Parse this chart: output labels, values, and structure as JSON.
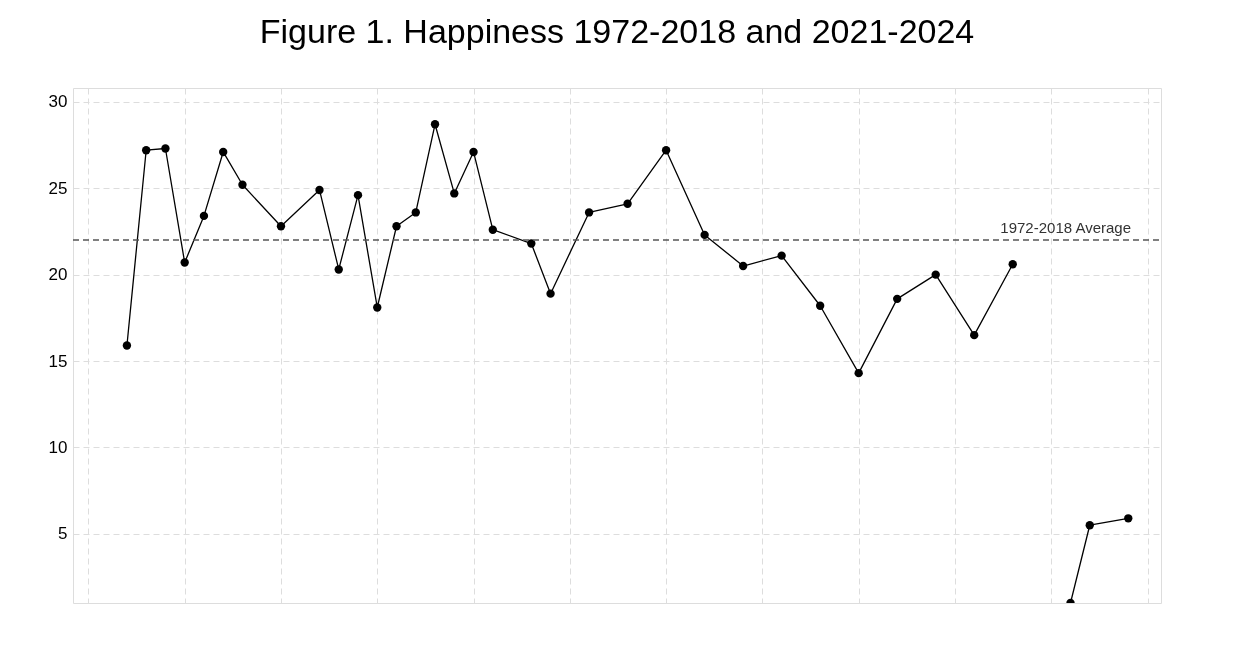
{
  "chart_data": {
    "type": "line",
    "title": "Figure 1.  Happiness 1972-2018 and 2021-2024",
    "categories": [
      null,
      null,
      null,
      null,
      null,
      null,
      null,
      null,
      null,
      null,
      null,
      null,
      null,
      null,
      null,
      null,
      null,
      null,
      null,
      null,
      null,
      null,
      null,
      null,
      null,
      null,
      null,
      null,
      null,
      null,
      null,
      null,
      null,
      null,
      null,
      null,
      null,
      null,
      null,
      null,
      null,
      null,
      null,
      null,
      null,
      null,
      null,
      null,
      null,
      null,
      null,
      null,
      null
    ],
    "series": [
      {
        "color": "#000000",
        "values": [
          15.9,
          27.2,
          27.3,
          20.7,
          23.4,
          27.1,
          25.2,
          null,
          22.8,
          null,
          24.9,
          20.3,
          24.6,
          18.1,
          22.8,
          23.6,
          28.7,
          24.7,
          27.1,
          22.6,
          null,
          21.8,
          18.9,
          null,
          23.6,
          null,
          24.1,
          null,
          27.2,
          null,
          22.3,
          null,
          20.5,
          null,
          21.1,
          null,
          18.2,
          null,
          14.3,
          null,
          18.6,
          null,
          20.0,
          null,
          16.5,
          null,
          20.6,
          null,
          null,
          null,
          null,
          null,
          null
        ]
      },
      {
        "color": "#000000",
        "values": [
          null,
          null,
          null,
          null,
          null,
          null,
          null,
          null,
          null,
          null,
          null,
          null,
          null,
          null,
          null,
          null,
          null,
          null,
          null,
          null,
          null,
          null,
          null,
          null,
          null,
          null,
          null,
          null,
          null,
          null,
          null,
          null,
          null,
          null,
          null,
          null,
          null,
          null,
          null,
          null,
          null,
          null,
          null,
          null,
          null,
          null,
          null,
          null,
          null,
          1.0,
          5.5,
          null,
          5.9
        ]
      }
    ],
    "ylim": [
      1,
      30.8
    ],
    "yticks": [
      5,
      10,
      15,
      20,
      25,
      30
    ],
    "ref_lines": [
      {
        "axis": "y",
        "value": 22.0,
        "label": "1972-2018 Average",
        "color": "#555555",
        "line_style": "dashed"
      }
    ],
    "grid": true,
    "marker": "circle",
    "line_style": "solid",
    "tick_labels": "y"
  }
}
